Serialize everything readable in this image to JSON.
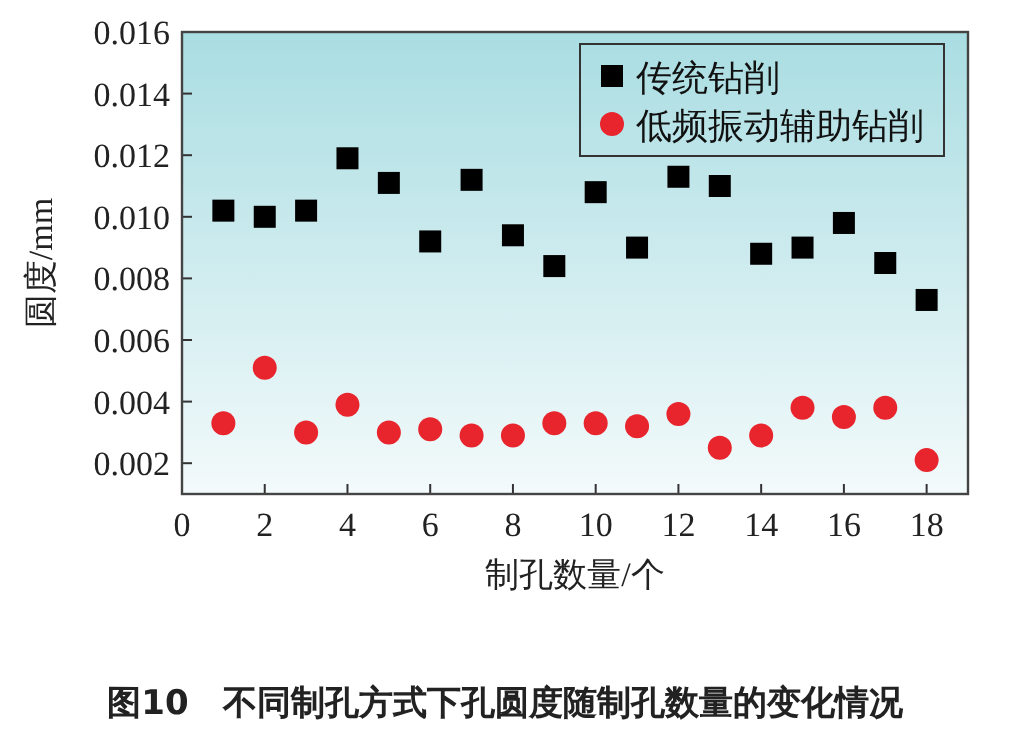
{
  "chart_data": {
    "type": "scatter",
    "xlabel": "制孔数量/个",
    "ylabel": "圆度/mm",
    "x": [
      1,
      2,
      3,
      4,
      5,
      6,
      7,
      8,
      9,
      10,
      11,
      12,
      13,
      14,
      15,
      16,
      17,
      18
    ],
    "series": [
      {
        "name": "传统钻削",
        "color": "#000000",
        "marker": "square",
        "values": [
          0.0102,
          0.01,
          0.0102,
          0.0119,
          0.0111,
          0.0092,
          0.0112,
          0.0094,
          0.0084,
          0.0108,
          0.009,
          0.0113,
          0.011,
          0.0088,
          0.009,
          0.0098,
          0.0085,
          0.0073
        ]
      },
      {
        "name": "低频振动辅助钻削",
        "color": "#e8242c",
        "marker": "circle",
        "values": [
          0.0033,
          0.0051,
          0.003,
          0.0039,
          0.003,
          0.0031,
          0.0029,
          0.0029,
          0.0033,
          0.0033,
          0.0032,
          0.0036,
          0.0025,
          0.0029,
          0.0038,
          0.0035,
          0.0038,
          0.0021
        ]
      }
    ],
    "xlim": [
      0,
      19
    ],
    "xticks": [
      0,
      2,
      4,
      6,
      8,
      10,
      12,
      14,
      16,
      18
    ],
    "ylim": [
      0.001,
      0.016
    ],
    "yticks": [
      {
        "value": 0.002,
        "label": "0.002"
      },
      {
        "value": 0.004,
        "label": "0.004"
      },
      {
        "value": 0.006,
        "label": "0.006"
      },
      {
        "value": 0.008,
        "label": "0.008"
      },
      {
        "value": 0.01,
        "label": "0.010"
      },
      {
        "value": 0.012,
        "label": "0.012"
      },
      {
        "value": 0.014,
        "label": "0.014"
      },
      {
        "value": 0.016,
        "label": "0.016"
      }
    ],
    "legend": "top right",
    "grid": false,
    "annotations": [
      "图10　不同制孔方式下孔圆度随制孔数量的变化情况"
    ]
  }
}
